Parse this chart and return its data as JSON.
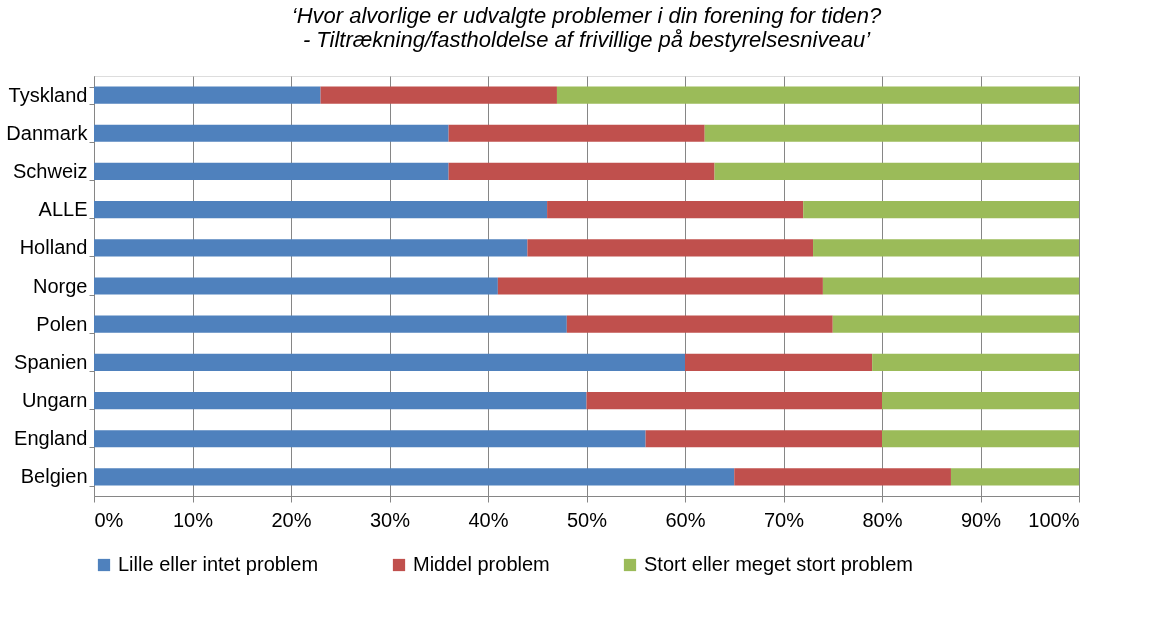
{
  "chart_data": {
    "type": "bar",
    "orientation": "horizontal",
    "stacked": true,
    "title": "‘Hvor alvorlige er udvalgte problemer i din forening for tiden?\n-      Tiltrækning/fastholdelse af frivillige på bestyrelsesniveau’",
    "categories": [
      "Tyskland",
      "Danmark",
      "Schweiz",
      "ALLE",
      "Holland",
      "Norge",
      "Polen",
      "Spanien",
      "Ungarn",
      "England",
      "Belgien"
    ],
    "series": [
      {
        "name": "Lille eller intet problem",
        "color": "#4f81bd",
        "values": [
          23,
          36,
          36,
          46,
          44,
          41,
          48,
          60,
          50,
          56,
          65
        ]
      },
      {
        "name": "Middel problem",
        "color": "#c0504d",
        "values": [
          24,
          26,
          27,
          26,
          29,
          33,
          27,
          19,
          30,
          24,
          22
        ]
      },
      {
        "name": "Stort eller meget stort problem",
        "color": "#9bbb59",
        "values": [
          53,
          38,
          37,
          28,
          27,
          26,
          25,
          21,
          20,
          20,
          13
        ]
      }
    ],
    "xlim": [
      0,
      100
    ],
    "xticks": [
      {
        "value": 0,
        "label": "0%"
      },
      {
        "value": 10,
        "label": "10%"
      },
      {
        "value": 20,
        "label": "20%"
      },
      {
        "value": 30,
        "label": "30%"
      },
      {
        "value": 40,
        "label": "40%"
      },
      {
        "value": 50,
        "label": "50%"
      },
      {
        "value": 60,
        "label": "60%"
      },
      {
        "value": 70,
        "label": "70%"
      },
      {
        "value": 80,
        "label": "80%"
      },
      {
        "value": 90,
        "label": "90%"
      },
      {
        "value": 100,
        "label": "100%"
      }
    ],
    "grid": "x",
    "legend": "bottom"
  }
}
